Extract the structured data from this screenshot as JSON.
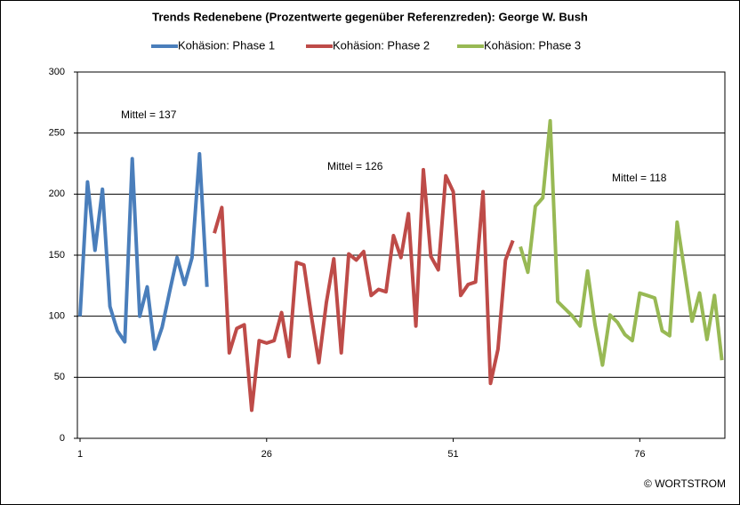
{
  "chart_data": {
    "type": "line",
    "title": "Trends  Redenebene (Prozentwerte gegenüber Referenzreden):  George W. Bush",
    "series": [
      {
        "name": "Kohäsion: Phase 1",
        "color": "#4a7ebb",
        "x": [
          1,
          2,
          3,
          4,
          5,
          6,
          7,
          8,
          9,
          10,
          11,
          12,
          13,
          14,
          15,
          16,
          17,
          18
        ],
        "values": [
          100,
          210,
          154,
          204,
          108,
          88,
          79,
          229,
          100,
          124,
          73,
          91,
          120,
          148,
          126,
          148,
          233,
          124
        ]
      },
      {
        "name": "Kohäsion: Phase 2",
        "color": "#be4b48",
        "x": [
          19,
          20,
          21,
          22,
          23,
          24,
          25,
          26,
          27,
          28,
          29,
          30,
          31,
          32,
          33,
          34,
          35,
          36,
          37,
          38,
          39,
          40,
          41,
          42,
          43,
          44,
          45,
          46,
          47,
          48,
          49,
          50,
          51,
          52,
          53,
          54,
          55,
          56,
          57,
          58,
          59
        ],
        "values": [
          168,
          189,
          70,
          90,
          93,
          23,
          80,
          78,
          80,
          103,
          67,
          144,
          142,
          100,
          62,
          111,
          147,
          70,
          151,
          146,
          153,
          117,
          122,
          120,
          166,
          148,
          184,
          92,
          220,
          149,
          138,
          215,
          202,
          117,
          126,
          128,
          202,
          45,
          73,
          146,
          162
        ]
      },
      {
        "name": "Kohäsion: Phase 3",
        "color": "#98b954",
        "x": [
          60,
          61,
          62,
          63,
          64,
          65,
          66,
          67,
          68,
          69,
          70,
          71,
          72,
          73,
          74,
          75,
          76,
          77,
          78,
          79,
          80,
          81,
          82,
          83,
          84,
          85,
          86,
          87
        ],
        "values": [
          157,
          136,
          190,
          197,
          260,
          112,
          106,
          100,
          92,
          137,
          93,
          60,
          101,
          95,
          85,
          80,
          119,
          117,
          115,
          88,
          84,
          177,
          137,
          96,
          119,
          81,
          117,
          64
        ]
      }
    ],
    "annotations": [
      "Mittel = 137",
      "Mittel = 126",
      "Mittel = 118"
    ],
    "footer": "© WORTSTROM",
    "xlim": [
      1,
      87.4
    ],
    "xticks": [
      1,
      26,
      51,
      76
    ],
    "ylim": [
      0,
      300
    ],
    "yticks": [
      0,
      50,
      100,
      150,
      200,
      250,
      300
    ],
    "grid": true,
    "legend": "top"
  }
}
